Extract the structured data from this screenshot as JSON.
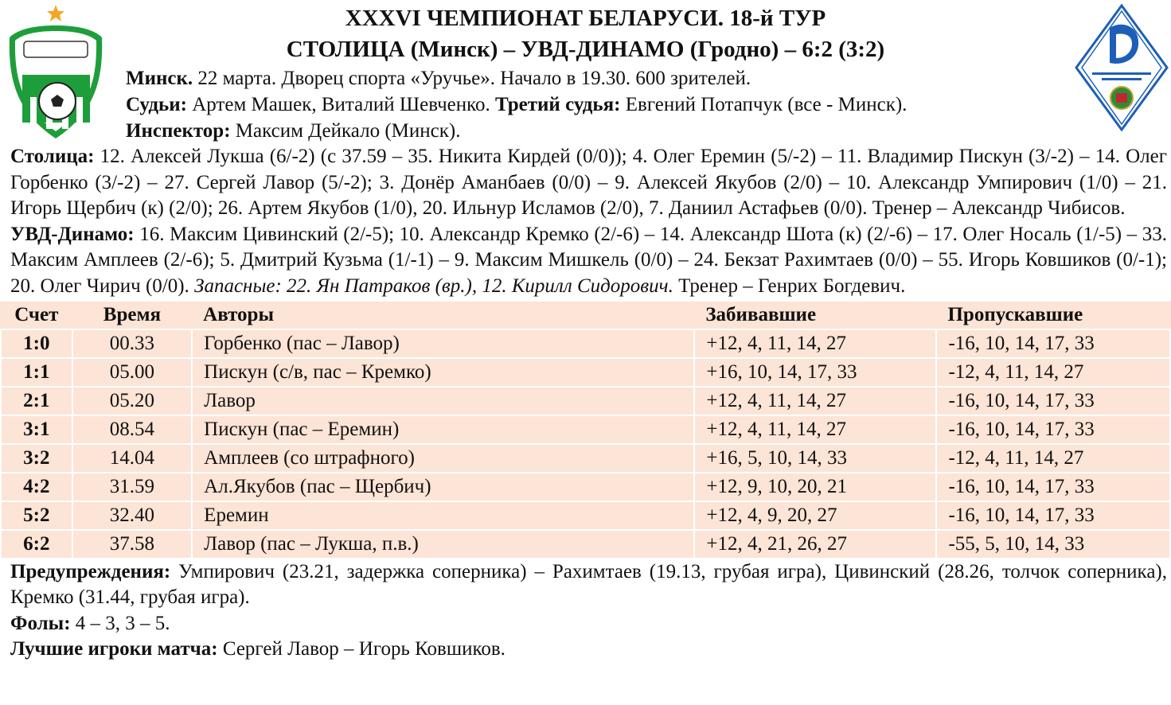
{
  "header": {
    "title1": "XXXVI ЧЕМПИОНАТ БЕЛАРУСИ. 18-й ТУР",
    "title2": "СТОЛИЦА (Минск) – УВД-ДИНАМО (Гродно) – 6:2 (3:2)"
  },
  "logos": {
    "home": "СТАЛІЦА МФК",
    "away": "МФК УВД-ДИНАМО (ГРОДНО)"
  },
  "info": [
    [
      {
        "b": "Минск."
      },
      {
        "t": " 22 марта. Дворец спорта «Уручье». Начало в 19.30. 600 зрителей."
      }
    ],
    [
      {
        "b": "Судьи:"
      },
      {
        "t": " Артем Машек, Виталий Шевченко. "
      },
      {
        "b": "Третий судья:"
      },
      {
        "t": " Евгений Потапчук (все - Минск)."
      }
    ],
    [
      {
        "b": "Инспектор:"
      },
      {
        "t": " Максим Дейкало (Минск)."
      }
    ]
  ],
  "lineups": [
    [
      {
        "b": "Столица:"
      },
      {
        "t": " 12. Алексей Лукша (6/-2) (с 37.59 – 35. Никита Кирдей (0/0)); 4. Олег Еремин (5/-2) – 11. Владимир Пискун (3/-2) – 14. Олег Горбенко (3/-2) – 27. Сергей Лавор (5/-2); 3. Донёр Аманбаев (0/0) – 9. Алексей Якубов (2/0) – 10. Александр Умпирович (1/0) – 21. Игорь Щербич (к) (2/0); 26. Артем Якубов (1/0), 20. Ильнур Исламов (2/0), 7. Даниил Астафьев (0/0). Тренер – Александр Чибисов."
      }
    ],
    [
      {
        "b": "УВД-Динамо:"
      },
      {
        "t": " 16. Максим Цивинский (2/-5); 10. Александр Кремко (2/-6) – 14. Александр Шота (к) (2/-6) – 17. Олег Носаль (1/-5) – 33. Максим Амплеев (2/-6); 5. Дмитрий Кузьма (1/-1) – 9. Максим Мишкель (0/0) – 24. Бекзат Рахимтаев (0/0) – 55. Игорь Ковшиков (0/-1); 20. Олег Чирич (0/0). "
      },
      {
        "i": "Запасные: 22. Ян Патраков (вр.), 12. Кирилл Сидорович."
      },
      {
        "t": " Тренер – Генрих Богдевич."
      }
    ]
  ],
  "goals": {
    "headers": [
      "Счет",
      "Время",
      "Авторы",
      "Забивавшие",
      "Пропускавшие"
    ],
    "rows": [
      [
        "1:0",
        "00.33",
        "Горбенко (пас – Лавор)",
        "+12, 4, 11, 14, 27",
        "-16, 10, 14, 17, 33"
      ],
      [
        "1:1",
        "05.00",
        "Пискун (с/в, пас – Кремко)",
        "+16, 10, 14, 17, 33",
        "-12, 4, 11, 14, 27"
      ],
      [
        "2:1",
        "05.20",
        "Лавор",
        "+12, 4, 11, 14, 27",
        "-16, 10, 14, 17, 33"
      ],
      [
        "3:1",
        "08.54",
        "Пискун (пас – Еремин)",
        "+12, 4, 11, 14, 27",
        "-16, 10, 14, 17, 33"
      ],
      [
        "3:2",
        "14.04",
        "Амплеев (со штрафного)",
        "+16, 5, 10, 14, 33",
        "-12, 4, 11, 14, 27"
      ],
      [
        "4:2",
        "31.59",
        "Ал.Якубов (пас – Щербич)",
        "+12, 9, 10, 20, 21",
        "-16, 10, 14, 17, 33"
      ],
      [
        "5:2",
        "32.40",
        "Еремин",
        "+12, 4, 9, 20, 27",
        "-16, 10, 14, 17, 33"
      ],
      [
        "6:2",
        "37.58",
        "Лавор (пас – Лукша, п.в.)",
        "+12, 4, 21, 26, 27",
        "-55, 5, 10, 14, 33"
      ]
    ]
  },
  "footer": [
    [
      {
        "b": "Предупреждения:"
      },
      {
        "t": " Умпирович (23.21, задержка соперника) – Рахимтаев (19.13, грубая игра), Цивинский (28.26, толчок соперника), Кремко (31.44, грубая игра)."
      }
    ],
    [
      {
        "b": "Фолы:"
      },
      {
        "t": " 4 – 3, 3 – 5."
      }
    ],
    [
      {
        "b": "Лучшие игроки матча:"
      },
      {
        "t": " Сергей Лавор – Игорь Ковшиков."
      }
    ]
  ],
  "colors": {
    "table_bg": "#fce4d6",
    "home_green": "#1e9e3a",
    "away_blue": "#1d5fb8",
    "star": "#f5a623"
  }
}
